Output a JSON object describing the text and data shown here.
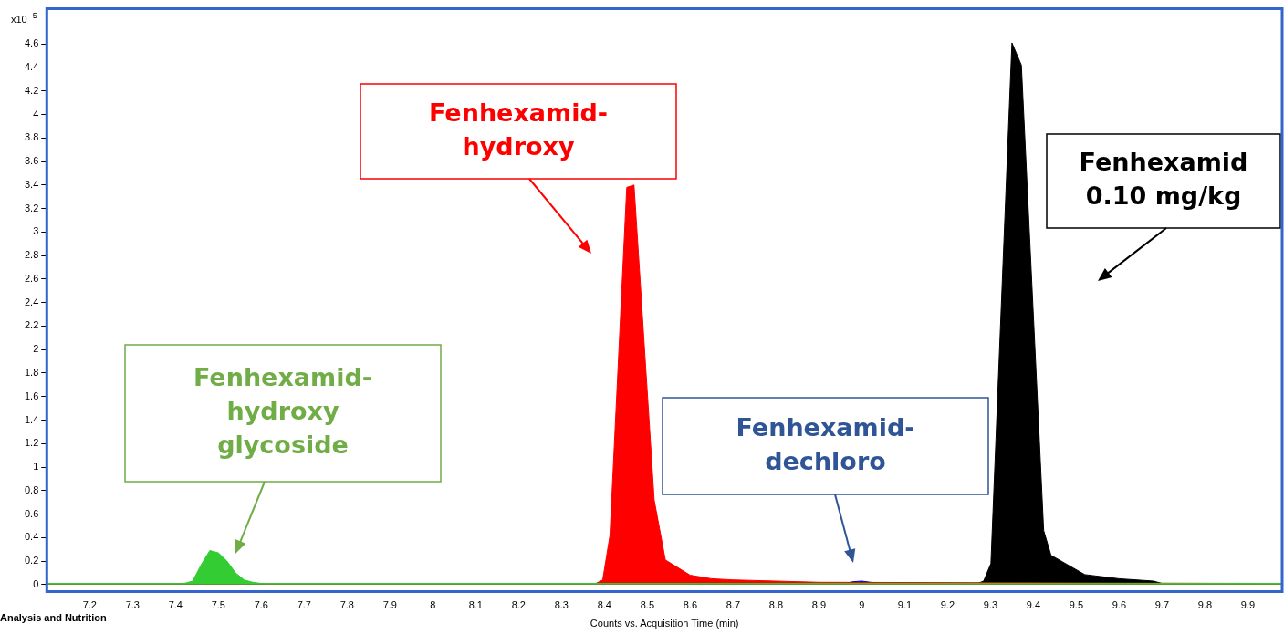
{
  "chart_data": {
    "type": "area",
    "xlabel": "Counts vs. Acquisition Time (min)",
    "ylabel": "x10$^{5}$",
    "xlim": [
      7.1,
      9.98
    ],
    "ylim": [
      -0.06,
      4.9
    ],
    "xticks": [
      7.2,
      7.3,
      7.4,
      7.5,
      7.6,
      7.7,
      7.8,
      7.9,
      8,
      8.1,
      8.2,
      8.3,
      8.4,
      8.5,
      8.6,
      8.7,
      8.8,
      8.9,
      9,
      9.1,
      9.2,
      9.3,
      9.4,
      9.5,
      9.6,
      9.7,
      9.8,
      9.9
    ],
    "yticks": [
      0,
      0.2,
      0.4,
      0.6,
      0.8,
      1,
      1.2,
      1.4,
      1.6,
      1.8,
      2,
      2.2,
      2.4,
      2.6,
      2.8,
      3,
      3.2,
      3.4,
      3.6,
      3.8,
      4,
      4.2,
      4.4,
      4.6
    ],
    "grid": false,
    "legend": false,
    "marker": "none",
    "series": [
      {
        "color": "#33cc33",
        "x": [
          7.1,
          7.42,
          7.44,
          7.46,
          7.48,
          7.5,
          7.52,
          7.54,
          7.56,
          7.58,
          7.6,
          9.98
        ],
        "values": [
          0.01,
          0.01,
          0.03,
          0.17,
          0.29,
          0.27,
          0.2,
          0.1,
          0.04,
          0.02,
          0.01,
          0.01
        ]
      },
      {
        "color": "#ff0000",
        "x": [
          7.1,
          8.38,
          8.396,
          8.413,
          8.452,
          8.469,
          8.516,
          8.542,
          8.6,
          8.65,
          8.7,
          8.9,
          9.98
        ],
        "values": [
          0.01,
          0.01,
          0.04,
          0.42,
          3.38,
          3.4,
          0.72,
          0.21,
          0.08,
          0.05,
          0.04,
          0.02,
          0.01
        ]
      },
      {
        "color": "#0000cc",
        "x": [
          7.1,
          8.96,
          8.98,
          9.0,
          9.02,
          9.04,
          9.98
        ],
        "values": [
          0.01,
          0.01,
          0.025,
          0.03,
          0.02,
          0.01,
          0.01
        ]
      },
      {
        "color": "#000000",
        "x": [
          7.1,
          9.27,
          9.284,
          9.301,
          9.35,
          9.372,
          9.424,
          9.441,
          9.52,
          9.6,
          9.68,
          9.7,
          9.98
        ],
        "values": [
          0.01,
          0.01,
          0.03,
          0.18,
          4.61,
          4.42,
          0.46,
          0.25,
          0.085,
          0.05,
          0.03,
          0.01,
          0.01
        ]
      }
    ],
    "annotations": [
      "Fenhexamid-\nhydroxy",
      "Fenhexamid-\nhydroxy\nglycoside",
      "Fenhexamid-\ndechloro",
      "Fenhexamid\n0.10 mg/kg",
      "Analysis and Nutrition"
    ]
  }
}
